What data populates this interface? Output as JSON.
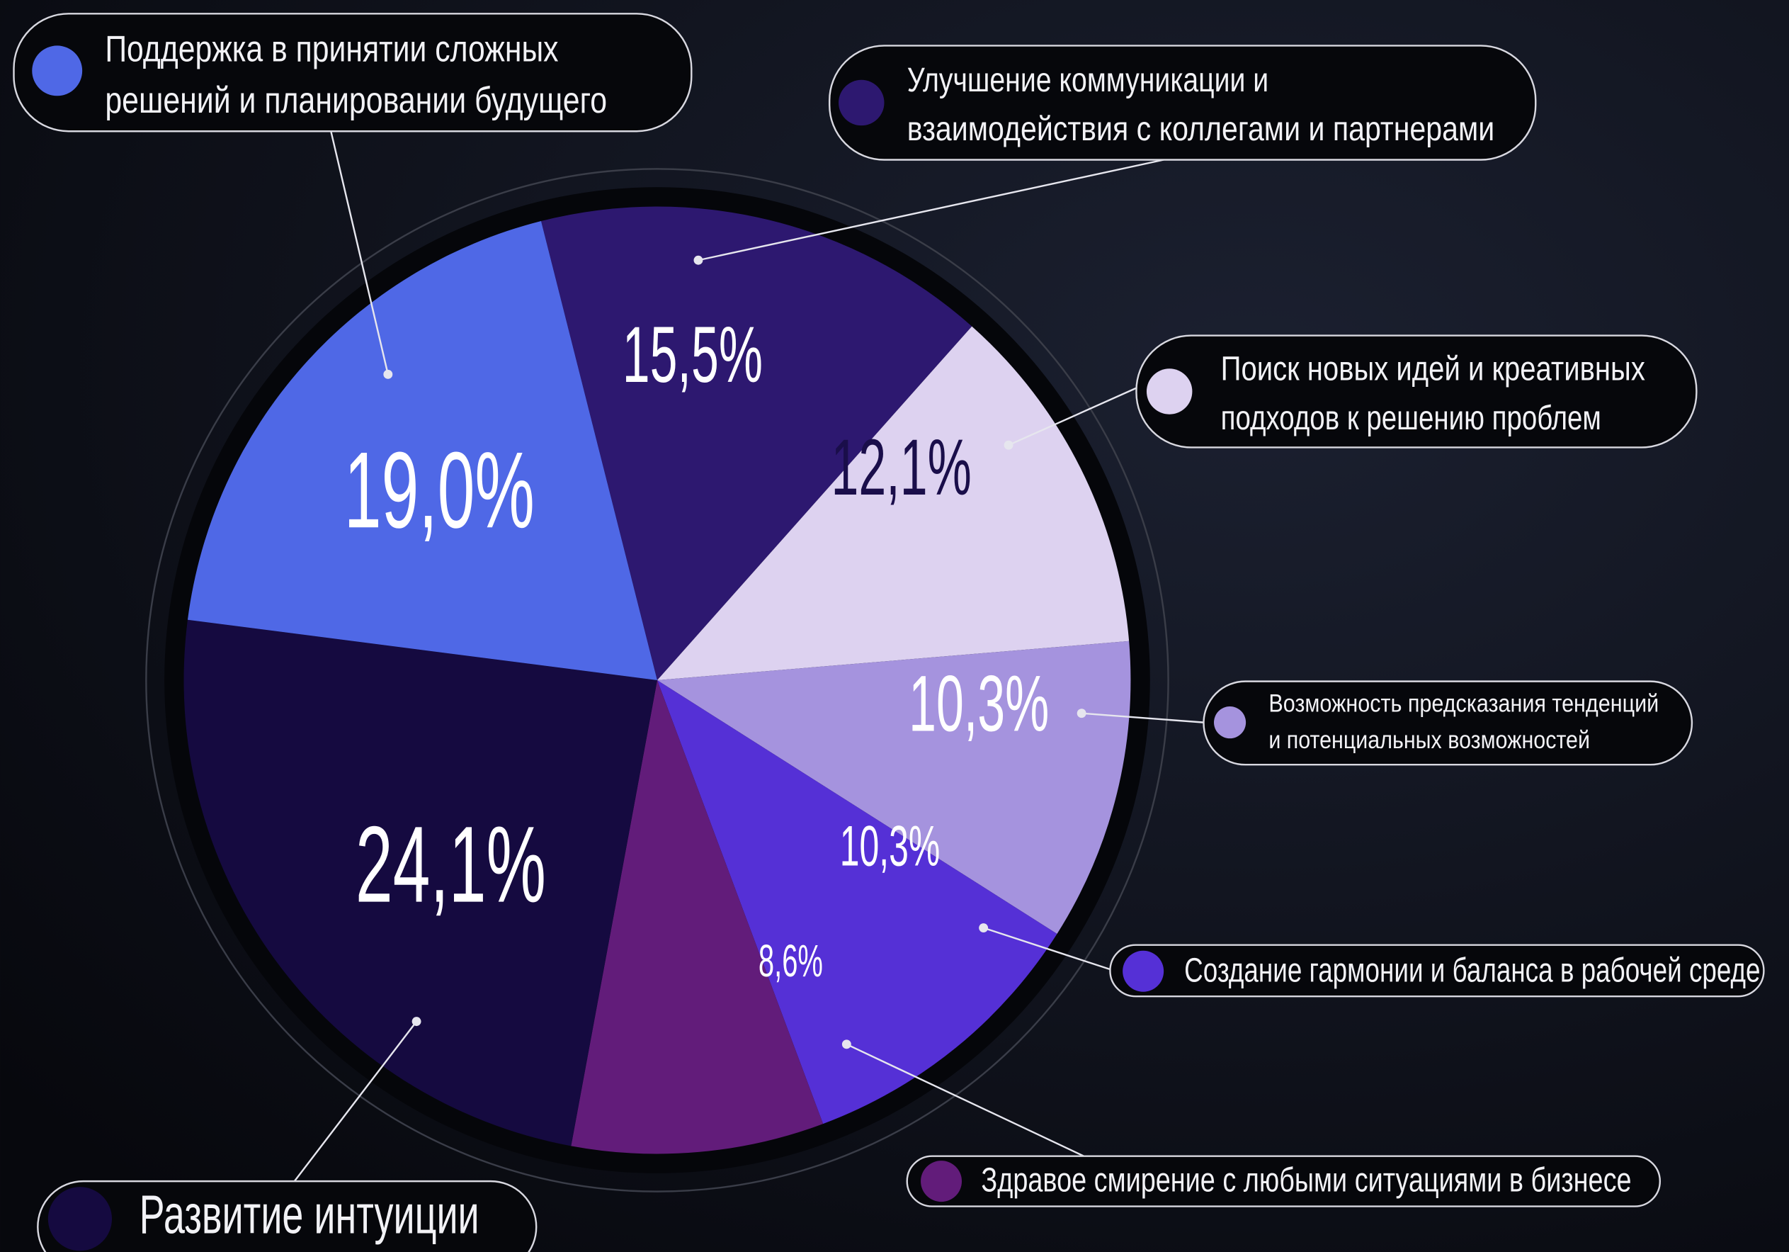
{
  "chart_data": {
    "type": "pie",
    "slices": [
      {
        "label": "Улучшение коммуникации и взаимодействия с коллегами и партнерами",
        "value": 15.5,
        "value_label": "15,5%",
        "color": "#2d1870"
      },
      {
        "label": "Поиск новых идей и креативных подходов к решению проблем",
        "value": 12.1,
        "value_label": "12,1%",
        "color": "#ddd2f0"
      },
      {
        "label": "Возможность предсказания тенденций и потенциальных возможностей",
        "value": 10.3,
        "value_label": "10,3%",
        "color": "#a593de"
      },
      {
        "label": "Создание гармонии и баланса в рабочей среде",
        "value": 10.3,
        "value_label": "10,3%",
        "color": "#5530d6"
      },
      {
        "label": "Здравое смирение с любыми ситуациями в бизнесе",
        "value": 8.6,
        "value_label": "8,6%",
        "color": "#621c7a"
      },
      {
        "label": "Развитие интуиции",
        "value": 24.1,
        "value_label": "24,1%",
        "color": "#150a40"
      },
      {
        "label": "Поддержка в принятии сложных решений и планировании будущего",
        "value": 19.0,
        "value_label": "19,0%",
        "color": "#4f68e6"
      }
    ]
  }
}
